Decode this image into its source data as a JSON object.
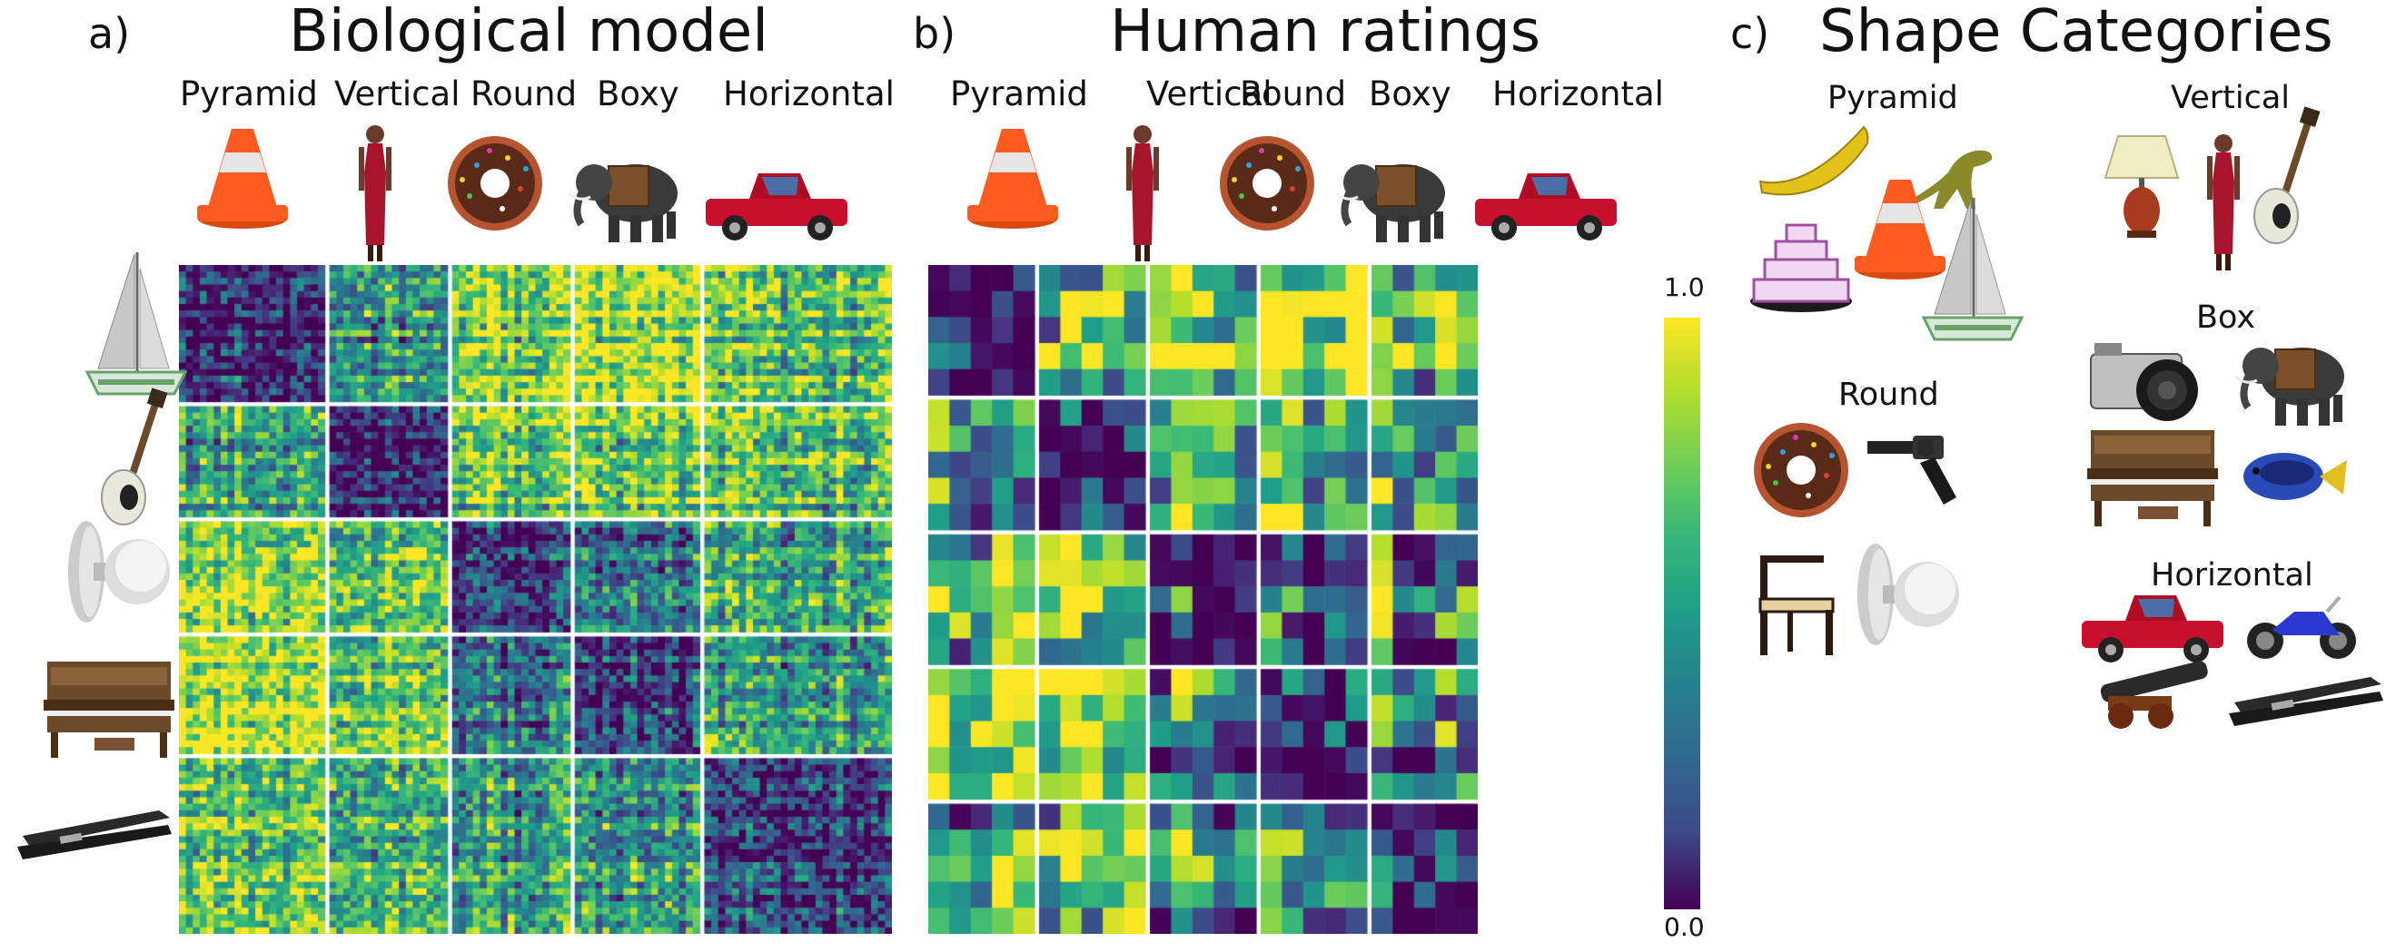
{
  "panels": {
    "a": {
      "letter": "a)",
      "title": "Biological model"
    },
    "b": {
      "letter": "b)",
      "title": "Human ratings"
    },
    "c": {
      "letter": "c)",
      "title": "Shape Categories"
    }
  },
  "categories": [
    "Pyramid",
    "Vertical",
    "Round",
    "Boxy",
    "Horizontal"
  ],
  "colorbar": {
    "max_label": "1.0",
    "min_label": "0.0"
  },
  "shape_groups": {
    "pyramid": "Pyramid",
    "vertical": "Vertical",
    "round": "Round",
    "box": "Box",
    "horizontal": "Horizontal"
  },
  "icons": {
    "column": [
      "traffic-cone-icon",
      "standing-woman-icon",
      "donut-icon",
      "elephant-icon",
      "pickup-truck-icon"
    ],
    "row": [
      "sailboat-icon",
      "electric-guitar-icon",
      "door-knob-icon",
      "upright-piano-icon",
      "stapler-icon"
    ],
    "pyramid": [
      "banana-icon",
      "dinosaur-icon",
      "layer-cake-icon",
      "traffic-cone-icon",
      "sailboat-icon"
    ],
    "vertical": [
      "table-lamp-icon",
      "standing-woman-icon",
      "electric-guitar-icon"
    ],
    "round": [
      "donut-icon",
      "revolver-icon",
      "chair-icon",
      "door-knob-icon"
    ],
    "box": [
      "camera-icon",
      "elephant-icon",
      "upright-piano-icon",
      "fish-icon"
    ],
    "horizontal": [
      "pickup-truck-icon",
      "motorcycle-icon",
      "cannon-icon",
      "stapler-icon"
    ]
  },
  "colors": {
    "viridis_low": "#440154",
    "viridis_mid": "#21918c",
    "viridis_high": "#fde725",
    "cone_orange": "#ff5a1f",
    "truck_red": "#c8102e",
    "donut_brown": "#8b4a2b"
  },
  "chart_data": [
    {
      "type": "heatmap",
      "title": "Biological model",
      "rows": 100,
      "cols": 100,
      "block_sizes": [
        21,
        17,
        17,
        18,
        27
      ],
      "categories": [
        "Pyramid",
        "Vertical",
        "Round",
        "Boxy",
        "Horizontal"
      ],
      "value_range": [
        0.0,
        1.0
      ],
      "colormap": "viridis"
    },
    {
      "type": "heatmap",
      "title": "Human ratings",
      "rows": 25,
      "cols": 25,
      "block_sizes": [
        5,
        5,
        5,
        5,
        5
      ],
      "categories": [
        "Pyramid",
        "Vertical",
        "Round",
        "Boxy",
        "Horizontal"
      ],
      "value_range": [
        0.0,
        1.0
      ],
      "colormap": "viridis",
      "colorbar": {
        "min": 0.0,
        "max": 1.0,
        "tick_labels": [
          "1.0",
          "0.0"
        ]
      }
    }
  ]
}
